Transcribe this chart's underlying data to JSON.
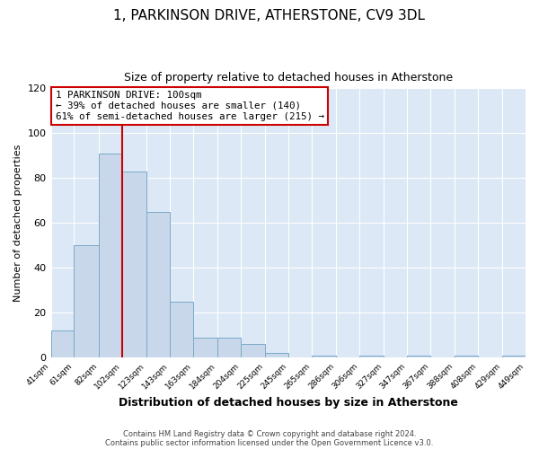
{
  "title": "1, PARKINSON DRIVE, ATHERSTONE, CV9 3DL",
  "subtitle": "Size of property relative to detached houses in Atherstone",
  "xlabel": "Distribution of detached houses by size in Atherstone",
  "ylabel": "Number of detached properties",
  "bar_color": "#c8d8ea",
  "bar_edge_color": "#7aaac8",
  "background_color": "#dce8f5",
  "fig_background": "#ffffff",
  "bin_edges": [
    41,
    61,
    82,
    102,
    123,
    143,
    163,
    184,
    204,
    225,
    245,
    265,
    286,
    306,
    327,
    347,
    367,
    388,
    408,
    429,
    449
  ],
  "bar_heights": [
    12,
    50,
    91,
    83,
    65,
    25,
    9,
    9,
    6,
    2,
    0,
    1,
    0,
    1,
    0,
    1,
    0,
    1,
    0,
    1
  ],
  "tick_labels": [
    "41sqm",
    "61sqm",
    "82sqm",
    "102sqm",
    "123sqm",
    "143sqm",
    "163sqm",
    "184sqm",
    "204sqm",
    "225sqm",
    "245sqm",
    "265sqm",
    "286sqm",
    "306sqm",
    "327sqm",
    "347sqm",
    "367sqm",
    "388sqm",
    "408sqm",
    "429sqm",
    "449sqm"
  ],
  "ylim": [
    0,
    120
  ],
  "yticks": [
    0,
    20,
    40,
    60,
    80,
    100,
    120
  ],
  "vline_x": 102,
  "vline_color": "#cc0000",
  "annotation_title": "1 PARKINSON DRIVE: 100sqm",
  "annotation_line1": "← 39% of detached houses are smaller (140)",
  "annotation_line2": "61% of semi-detached houses are larger (215) →",
  "annotation_box_color": "#ffffff",
  "annotation_box_edge": "#cc0000",
  "footer_line1": "Contains HM Land Registry data © Crown copyright and database right 2024.",
  "footer_line2": "Contains public sector information licensed under the Open Government Licence v3.0.",
  "title_fontsize": 11,
  "subtitle_fontsize": 9,
  "ylabel_fontsize": 8,
  "xlabel_fontsize": 9
}
